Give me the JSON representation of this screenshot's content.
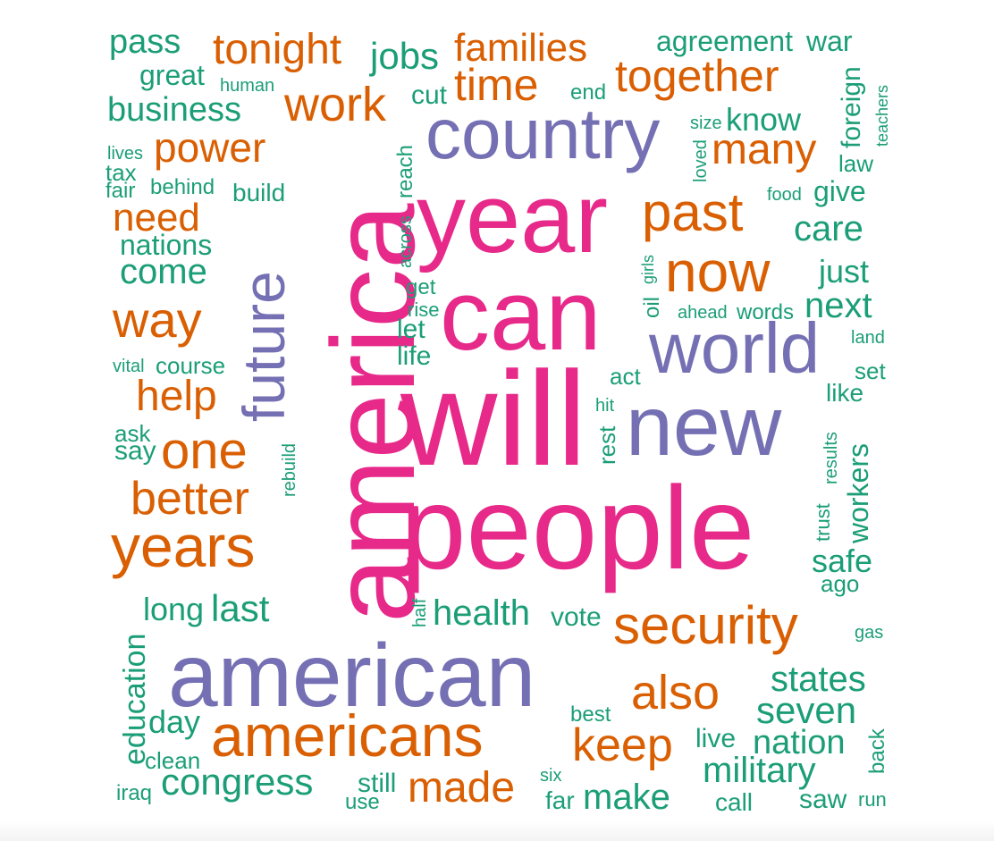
{
  "colors": {
    "green": "#1b9e77",
    "orange": "#d95f02",
    "purple": "#7570b3",
    "pink": "#e7298a"
  },
  "words": {
    "america": "america",
    "will": "will",
    "people": "people",
    "can": "can",
    "year": "year",
    "american": "american",
    "country": "country",
    "new": "new",
    "world": "world",
    "future": "future",
    "americans": "americans",
    "now": "now",
    "past": "past",
    "security": "security",
    "years": "years",
    "keep": "keep",
    "also": "also",
    "made": "made",
    "way": "way",
    "one": "one",
    "better": "better",
    "together": "together",
    "time": "time",
    "families": "families",
    "tonight": "tonight",
    "work": "work",
    "power": "power",
    "many": "many",
    "help": "help",
    "need": "need",
    "jobs": "jobs",
    "business": "business",
    "pass": "pass",
    "great": "great",
    "human": "human",
    "cut": "cut",
    "end": "end",
    "agreement": "agreement",
    "war": "war",
    "foreign": "foreign",
    "teachers": "teachers",
    "size": "size",
    "know": "know",
    "loved": "loved",
    "law": "law",
    "lives": "lives",
    "tax": "tax",
    "fair": "fair",
    "behind": "behind",
    "build": "build",
    "reach": "reach",
    "across": "across",
    "food": "food",
    "give": "give",
    "care": "care",
    "nations": "nations",
    "come": "come",
    "just": "just",
    "get": "get",
    "rise": "rise",
    "let": "let",
    "life": "life",
    "oil": "oil",
    "girls": "girls",
    "ahead": "ahead",
    "words": "words",
    "next": "next",
    "land": "land",
    "vital": "vital",
    "course": "course",
    "act": "act",
    "set": "set",
    "like": "like",
    "hit": "hit",
    "ask": "ask",
    "say": "say",
    "rest": "rest",
    "results": "results",
    "rebuild": "rebuild",
    "workers": "workers",
    "trust": "trust",
    "safe": "safe",
    "ago": "ago",
    "long": "long",
    "last": "last",
    "half": "half",
    "health": "health",
    "vote": "vote",
    "gas": "gas",
    "education": "education",
    "states": "states",
    "seven": "seven",
    "day": "day",
    "best": "best",
    "live": "live",
    "nation": "nation",
    "back": "back",
    "clean": "clean",
    "military": "military",
    "congress": "congress",
    "still": "still",
    "six": "six",
    "iraq": "iraq",
    "use": "use",
    "far": "far",
    "make": "make",
    "call": "call",
    "saw": "saw",
    "run": "run"
  }
}
